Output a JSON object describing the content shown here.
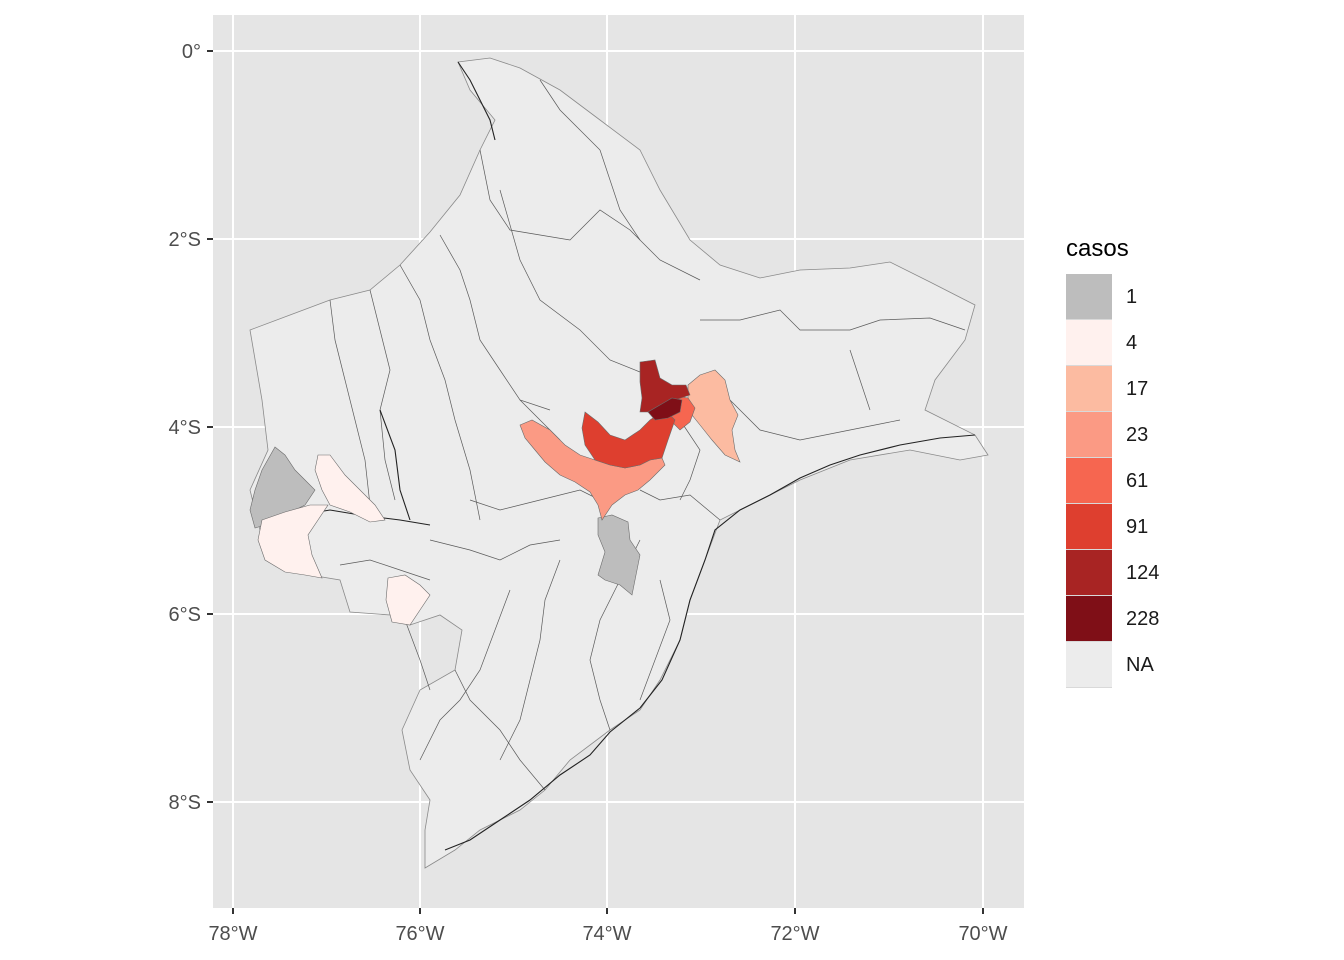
{
  "legend": {
    "title": "casos",
    "items": [
      {
        "label": "1",
        "color": "#bdbdbd"
      },
      {
        "label": "4",
        "color": "#fff1ee"
      },
      {
        "label": "17",
        "color": "#fcbba1"
      },
      {
        "label": "23",
        "color": "#fb9a84"
      },
      {
        "label": "61",
        "color": "#f66650"
      },
      {
        "label": "91",
        "color": "#de3f2f"
      },
      {
        "label": "124",
        "color": "#a82423"
      },
      {
        "label": "228",
        "color": "#7f0f17"
      },
      {
        "label": "NA",
        "color": "#ececec"
      }
    ]
  },
  "axes": {
    "x_ticks": [
      "78°W",
      "76°W",
      "74°W",
      "72°W",
      "70°W"
    ],
    "y_ticks": [
      "0°",
      "2°S",
      "4°S",
      "6°S",
      "8°S"
    ]
  },
  "colors": {
    "panel_background": "#e5e5e5",
    "gridline": "#ffffff",
    "boundary": "#4d4d4d"
  }
}
